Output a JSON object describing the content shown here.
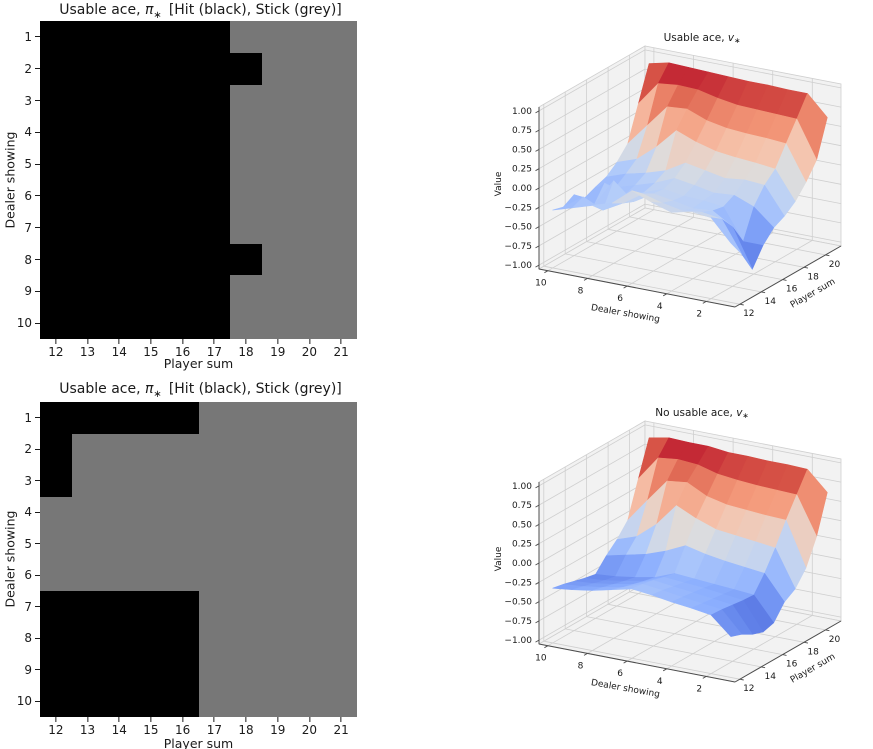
{
  "figure": {
    "background": "#ffffff"
  },
  "colors": {
    "hit": "#000000",
    "stick": "#777777",
    "pane3d": "#f2f2f2",
    "grid3d": "#cfcfcf",
    "spine3d": "#4d4d4d",
    "text": "#1a1a1a",
    "coolwarm": [
      "#3b4cc0",
      "#6182ea",
      "#8caffe",
      "#b7cff9",
      "#dddddd",
      "#f5c4ad",
      "#f49a7b",
      "#db5e4b",
      "#b40426"
    ]
  },
  "chart_data": [
    {
      "type": "heatmap",
      "name": "policy-usable-ace",
      "title_parts": {
        "prefix": "Usable ace, ",
        "var": "π",
        "sub": "∗",
        "rest": "[Hit (black), Stick (grey)]"
      },
      "xlabel": "Player sum",
      "ylabel": "Dealer showing",
      "x_categories": [
        12,
        13,
        14,
        15,
        16,
        17,
        18,
        19,
        20,
        21
      ],
      "y_categories": [
        1,
        2,
        3,
        4,
        5,
        6,
        7,
        8,
        9,
        10
      ],
      "value_meaning": {
        "1": "Hit (black)",
        "0": "Stick (grey)"
      },
      "values": [
        [
          1,
          1,
          1,
          1,
          1,
          1,
          0,
          0,
          0,
          0
        ],
        [
          1,
          1,
          1,
          1,
          1,
          1,
          1,
          0,
          0,
          0
        ],
        [
          1,
          1,
          1,
          1,
          1,
          1,
          0,
          0,
          0,
          0
        ],
        [
          1,
          1,
          1,
          1,
          1,
          1,
          0,
          0,
          0,
          0
        ],
        [
          1,
          1,
          1,
          1,
          1,
          1,
          0,
          0,
          0,
          0
        ],
        [
          1,
          1,
          1,
          1,
          1,
          1,
          0,
          0,
          0,
          0
        ],
        [
          1,
          1,
          1,
          1,
          1,
          1,
          0,
          0,
          0,
          0
        ],
        [
          1,
          1,
          1,
          1,
          1,
          1,
          1,
          0,
          0,
          0
        ],
        [
          1,
          1,
          1,
          1,
          1,
          1,
          0,
          0,
          0,
          0
        ],
        [
          1,
          1,
          1,
          1,
          1,
          1,
          0,
          0,
          0,
          0
        ]
      ]
    },
    {
      "type": "surface",
      "name": "value-usable-ace",
      "title_parts": {
        "prefix": "Usable ace, ",
        "var": "v",
        "sub": "∗"
      },
      "xlabel": "Dealer showing",
      "ylabel": "Player sum",
      "zlabel": "Value",
      "x": [
        1,
        2,
        3,
        4,
        5,
        6,
        7,
        8,
        9,
        10
      ],
      "y": [
        12,
        13,
        14,
        15,
        16,
        17,
        18,
        19,
        20,
        21
      ],
      "x_ticks": [
        10,
        8,
        6,
        4,
        2
      ],
      "y_ticks": [
        12,
        14,
        16,
        18,
        20
      ],
      "z_tick_labels": [
        "1.00",
        "0.75",
        "0.50",
        "0.25",
        "0.00",
        "−0.25",
        "−0.50",
        "−0.75",
        "−1.00"
      ],
      "zlim": [
        -1,
        1
      ],
      "values": [
        [
          -0.28,
          -0.5,
          -0.78,
          -0.55,
          -0.4,
          -0.33,
          -0.22,
          -0.05,
          0.16,
          0.63
        ],
        [
          0.0,
          -0.1,
          -0.28,
          -0.55,
          -0.18,
          0.02,
          0.15,
          0.4,
          0.64,
          0.89
        ],
        [
          0.03,
          -0.06,
          -0.12,
          -0.15,
          -0.08,
          0.04,
          0.18,
          0.42,
          0.65,
          0.89
        ],
        [
          -0.03,
          -0.09,
          -0.14,
          -0.12,
          -0.1,
          0.01,
          0.2,
          0.43,
          0.66,
          0.9
        ],
        [
          0.05,
          -0.04,
          -0.09,
          -0.11,
          -0.05,
          0.06,
          0.23,
          0.45,
          0.67,
          0.9
        ],
        [
          0.15,
          0.03,
          -0.05,
          -0.07,
          -0.01,
          0.11,
          0.3,
          0.5,
          0.71,
          0.91
        ],
        [
          -0.06,
          -0.14,
          -0.2,
          -0.16,
          -0.12,
          -0.04,
          0.4,
          0.6,
          0.77,
          0.92
        ],
        [
          -0.14,
          -0.28,
          0.02,
          -0.25,
          -0.2,
          -0.12,
          0.14,
          0.58,
          0.78,
          0.93
        ],
        [
          -0.22,
          -0.16,
          -0.35,
          -0.14,
          -0.28,
          -0.18,
          -0.07,
          0.29,
          0.75,
          0.94
        ],
        [
          -0.3,
          -0.34,
          -0.26,
          -0.38,
          -0.32,
          -0.27,
          -0.16,
          0.0,
          0.44,
          0.88
        ]
      ]
    },
    {
      "type": "heatmap",
      "name": "policy-no-usable-ace",
      "title_parts": {
        "prefix": "Usable ace, ",
        "var": "π",
        "sub": "∗",
        "rest": "[Hit (black), Stick (grey)]"
      },
      "xlabel": "Player sum",
      "ylabel": "Dealer showing",
      "x_categories": [
        12,
        13,
        14,
        15,
        16,
        17,
        18,
        19,
        20,
        21
      ],
      "y_categories": [
        1,
        2,
        3,
        4,
        5,
        6,
        7,
        8,
        9,
        10
      ],
      "value_meaning": {
        "1": "Hit (black)",
        "0": "Stick (grey)"
      },
      "values": [
        [
          1,
          1,
          1,
          1,
          1,
          0,
          0,
          0,
          0,
          0
        ],
        [
          1,
          0,
          0,
          0,
          0,
          0,
          0,
          0,
          0,
          0
        ],
        [
          1,
          0,
          0,
          0,
          0,
          0,
          0,
          0,
          0,
          0
        ],
        [
          0,
          0,
          0,
          0,
          0,
          0,
          0,
          0,
          0,
          0
        ],
        [
          0,
          0,
          0,
          0,
          0,
          0,
          0,
          0,
          0,
          0
        ],
        [
          0,
          0,
          0,
          0,
          0,
          0,
          0,
          0,
          0,
          0
        ],
        [
          1,
          1,
          1,
          1,
          1,
          0,
          0,
          0,
          0,
          0
        ],
        [
          1,
          1,
          1,
          1,
          1,
          0,
          0,
          0,
          0,
          0
        ],
        [
          1,
          1,
          1,
          1,
          1,
          0,
          0,
          0,
          0,
          0
        ],
        [
          1,
          1,
          1,
          1,
          1,
          0,
          0,
          0,
          0,
          0
        ]
      ]
    },
    {
      "type": "surface",
      "name": "value-no-usable-ace",
      "title_parts": {
        "prefix": "No usable ace, ",
        "var": "v",
        "sub": "∗"
      },
      "xlabel": "Dealer showing",
      "ylabel": "Player sum",
      "zlabel": "Value",
      "x": [
        1,
        2,
        3,
        4,
        5,
        6,
        7,
        8,
        9,
        10
      ],
      "y": [
        12,
        13,
        14,
        15,
        16,
        17,
        18,
        19,
        20,
        21
      ],
      "x_ticks": [
        10,
        8,
        6,
        4,
        2
      ],
      "y_ticks": [
        12,
        14,
        16,
        18,
        20
      ],
      "z_tick_labels": [
        "1.00",
        "0.75",
        "0.50",
        "0.25",
        "0.00",
        "−0.25",
        "−0.50",
        "−0.75",
        "−1.00"
      ],
      "zlim": [
        -1,
        1
      ],
      "values": [
        [
          -0.52,
          -0.57,
          -0.65,
          -0.7,
          -0.66,
          -0.47,
          -0.38,
          -0.19,
          0.14,
          0.63
        ],
        [
          -0.29,
          -0.3,
          -0.32,
          -0.34,
          -0.35,
          -0.15,
          0.1,
          0.38,
          0.63,
          0.88
        ],
        [
          -0.25,
          -0.27,
          -0.29,
          -0.31,
          -0.33,
          -0.12,
          0.13,
          0.39,
          0.64,
          0.89
        ],
        [
          -0.22,
          -0.24,
          -0.26,
          -0.28,
          -0.31,
          -0.09,
          0.16,
          0.41,
          0.65,
          0.89
        ],
        [
          -0.18,
          -0.2,
          -0.23,
          -0.26,
          -0.29,
          -0.05,
          0.19,
          0.43,
          0.67,
          0.9
        ],
        [
          -0.15,
          -0.17,
          -0.2,
          -0.24,
          -0.27,
          0.01,
          0.28,
          0.49,
          0.7,
          0.9
        ],
        [
          -0.21,
          -0.26,
          -0.3,
          -0.34,
          -0.37,
          -0.11,
          0.4,
          0.62,
          0.77,
          0.93
        ],
        [
          -0.27,
          -0.31,
          -0.35,
          -0.39,
          -0.42,
          -0.2,
          0.11,
          0.59,
          0.79,
          0.93
        ],
        [
          -0.31,
          -0.35,
          -0.39,
          -0.43,
          -0.46,
          -0.26,
          -0.1,
          0.29,
          0.76,
          0.94
        ],
        [
          -0.34,
          -0.37,
          -0.41,
          -0.45,
          -0.48,
          -0.32,
          -0.19,
          -0.02,
          0.44,
          0.89
        ]
      ]
    }
  ]
}
